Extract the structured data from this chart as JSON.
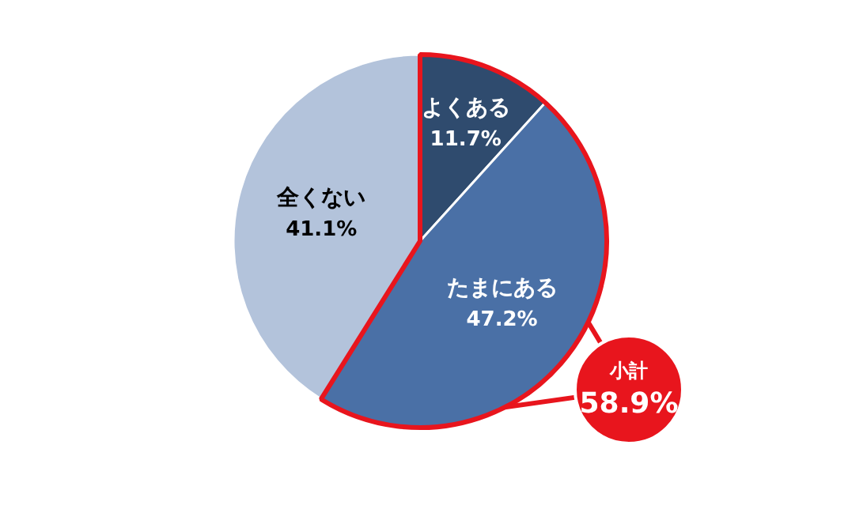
{
  "chart_data": {
    "type": "pie",
    "categories": [
      "よくある",
      "たまにある",
      "全くない"
    ],
    "values": [
      11.7,
      47.2,
      41.1
    ],
    "colors": [
      "#2f4b6e",
      "#4a70a6",
      "#b3c3db"
    ],
    "value_labels": [
      "11.7%",
      "47.2%",
      "41.1%"
    ],
    "annotations": [
      "小計",
      "58.9%"
    ]
  }
}
